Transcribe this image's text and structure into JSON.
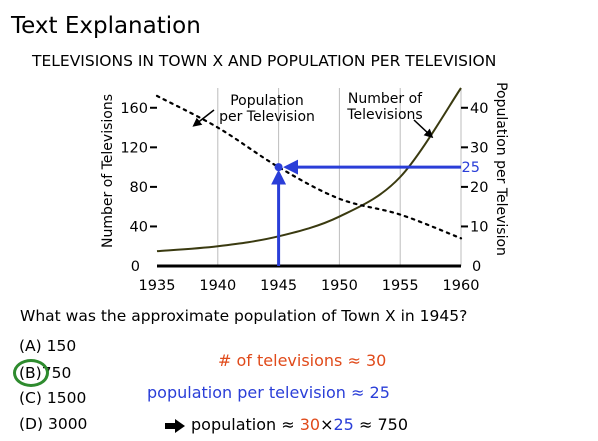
{
  "page": {
    "title": "Text Explanation",
    "question": "What was the approximate population of Town X in 1945?",
    "choices": [
      {
        "letter": "(A)",
        "value": "150"
      },
      {
        "letter": "(B)",
        "value": "750",
        "selected": true
      },
      {
        "letter": "(C)",
        "value": "1500"
      },
      {
        "letter": "(D)",
        "value": "3000"
      }
    ],
    "explanation": {
      "line1_prefix": "#  of televisions",
      "line1_approx": "≈",
      "line1_value": "30",
      "line2_prefix": "population per television",
      "line2_approx": "≈",
      "line2_value": "25",
      "line3_prefix": "population",
      "line3_approx": "≈",
      "line3_a": "30",
      "line3_times": "×",
      "line3_b": "25",
      "line3_approx2": "≈",
      "line3_result": "750"
    },
    "colors": {
      "orange": "#e04a1a",
      "blue": "#2a3ed8",
      "green": "#2e8b2e",
      "tv_line": "#3a3a10"
    }
  },
  "chart_data": {
    "type": "line",
    "title": "TELEVISIONS IN TOWN X AND POPULATION PER TELEVISION",
    "xlabel": "",
    "ylabel_left": "Number of Televisions",
    "ylabel_right": "Population per Television",
    "x_ticks": [
      1935,
      1940,
      1945,
      1950,
      1955,
      1960
    ],
    "y_left_ticks": [
      0,
      40,
      80,
      120,
      160
    ],
    "y_right_ticks": [
      0,
      10,
      20,
      30,
      40
    ],
    "xlim": [
      1935,
      1960
    ],
    "ylim_left": [
      0,
      180
    ],
    "ylim_right": [
      0,
      45
    ],
    "grid": "vertical",
    "series": [
      {
        "name": "Number of Televisions",
        "axis": "left",
        "style": "solid",
        "x": [
          1935,
          1940,
          1945,
          1950,
          1955,
          1960
        ],
        "y": [
          15,
          20,
          30,
          50,
          90,
          180
        ]
      },
      {
        "name": "Population per Television",
        "axis": "right",
        "style": "dotted",
        "x": [
          1935,
          1940,
          1945,
          1950,
          1955,
          1960
        ],
        "y": [
          43,
          35,
          25,
          17,
          13,
          7
        ]
      }
    ],
    "annotations": [
      {
        "text": "Population",
        "text2": "per Television"
      },
      {
        "text": "Number of",
        "text2": "Televisions"
      },
      {
        "text": "25",
        "note": "highlight value on right axis"
      }
    ]
  }
}
